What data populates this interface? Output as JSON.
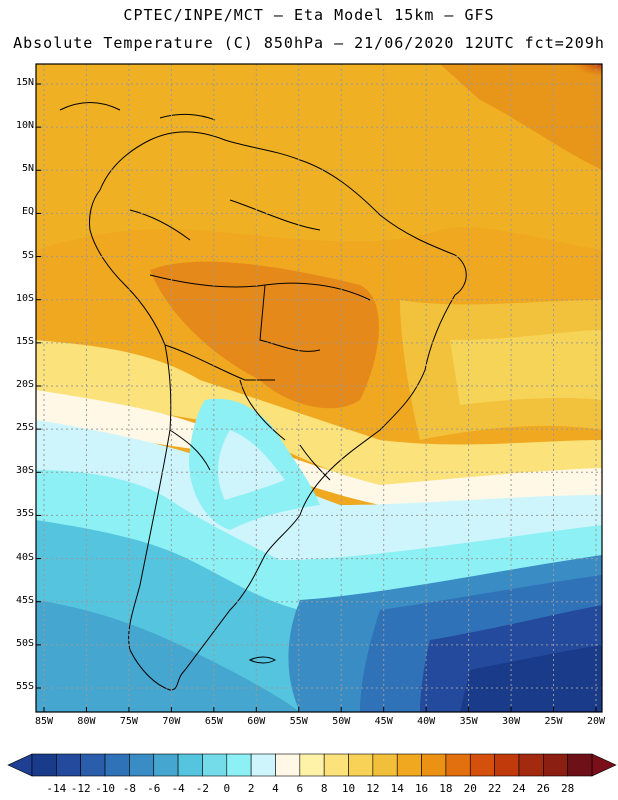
{
  "header": {
    "line1": "CPTEC/INPE/MCT –  Eta Model 15km – GFS",
    "line2": "Absolute Temperature (C) 850hPa – 21/06/2020 12UTC fct=209h"
  },
  "axes": {
    "lat_labels": [
      "15N",
      "10N",
      "5N",
      "EQ",
      "5S",
      "10S",
      "15S",
      "20S",
      "25S",
      "30S",
      "35S",
      "40S",
      "45S",
      "50S",
      "55S"
    ],
    "lon_labels": [
      "85W",
      "80W",
      "75W",
      "70W",
      "65W",
      "60W",
      "55W",
      "50W",
      "45W",
      "40W",
      "35W",
      "30W",
      "25W",
      "20W"
    ]
  },
  "colorbar": {
    "ticks": [
      "-14",
      "-12",
      "-10",
      "-8",
      "-6",
      "-4",
      "-2",
      "0",
      "2",
      "4",
      "6",
      "8",
      "10",
      "12",
      "14",
      "16",
      "18",
      "20",
      "22",
      "24",
      "26",
      "28"
    ],
    "colors": [
      "#1a3a8a",
      "#234a9c",
      "#2a5daa",
      "#2f72b8",
      "#3a8cc4",
      "#45a6cf",
      "#55c4de",
      "#74dbe8",
      "#8cf0f4",
      "#cdf5fb",
      "#fff8e6",
      "#fdf2a8",
      "#fbe27a",
      "#f8d257",
      "#f2bf3a",
      "#efa81f",
      "#eb9214",
      "#e2700e",
      "#d5500d",
      "#c13a0c",
      "#a32a0e",
      "#8a1f12",
      "#6e1018"
    ],
    "under_color": "#1f3f95",
    "over_color": "#7a0f1a"
  },
  "icons": {
    "gridlines": "dotted-grid",
    "land": "continent-outline"
  }
}
